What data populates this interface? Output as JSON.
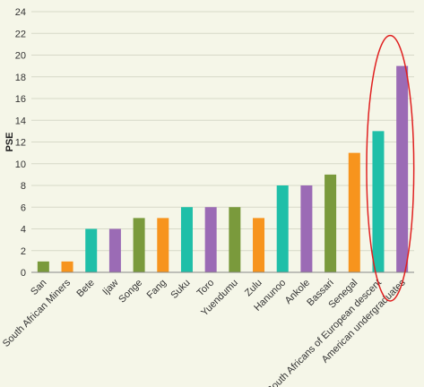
{
  "chart_data": {
    "type": "bar",
    "ylabel": "PSE",
    "xlabel": "",
    "ylim": [
      0,
      24
    ],
    "ytick_step": 2,
    "grid": true,
    "categories": [
      "San",
      "South African Miners",
      "Bete",
      "Ijaw",
      "Songe",
      "Fang",
      "Suku",
      "Toro",
      "Yuendumu",
      "Zulu",
      "Hanunoo",
      "Ankole",
      "Bassari",
      "Senegal",
      "South Africans of European descent",
      "American undergraduates"
    ],
    "values": [
      1,
      1,
      4,
      4,
      5,
      5,
      6,
      6,
      6,
      5,
      8,
      8,
      9,
      11,
      13,
      19
    ],
    "bar_colors": [
      "#7a9a3c",
      "#f7941d",
      "#1fbfa8",
      "#9b6bb5",
      "#7a9a3c",
      "#f7941d",
      "#1fbfa8",
      "#9b6bb5",
      "#7a9a3c",
      "#f7941d",
      "#1fbfa8",
      "#9b6bb5",
      "#7a9a3c",
      "#f7941d",
      "#1fbfa8",
      "#9b6bb5"
    ],
    "annotation": {
      "shape": "ellipse",
      "color": "#e02020",
      "highlights": [
        "South Africans of European descent",
        "American undergraduates"
      ]
    }
  }
}
